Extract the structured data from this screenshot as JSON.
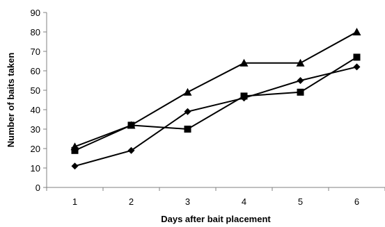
{
  "chart_data": {
    "type": "line",
    "title": "",
    "xlabel": "Days after bait placement",
    "ylabel": "Number of baits taken",
    "x": [
      1,
      2,
      3,
      4,
      5,
      6
    ],
    "x_tick_labels": [
      "1",
      "2",
      "3",
      "4",
      "5",
      "6"
    ],
    "ylim": [
      0,
      90
    ],
    "y_ticks": [
      0,
      10,
      20,
      30,
      40,
      50,
      60,
      70,
      80,
      90
    ],
    "y_tick_labels": [
      "0",
      "10",
      "20",
      "30",
      "40",
      "50",
      "60",
      "70",
      "80",
      "90"
    ],
    "grid": false,
    "legend": "none",
    "series": [
      {
        "marker": "diamond",
        "color": "#000000",
        "values": [
          11,
          19,
          39,
          46,
          55,
          62
        ]
      },
      {
        "marker": "square",
        "color": "#000000",
        "values": [
          19,
          32,
          30,
          47,
          49,
          67
        ]
      },
      {
        "marker": "triangle",
        "color": "#000000",
        "values": [
          21,
          32,
          49,
          64,
          64,
          80
        ]
      }
    ]
  }
}
